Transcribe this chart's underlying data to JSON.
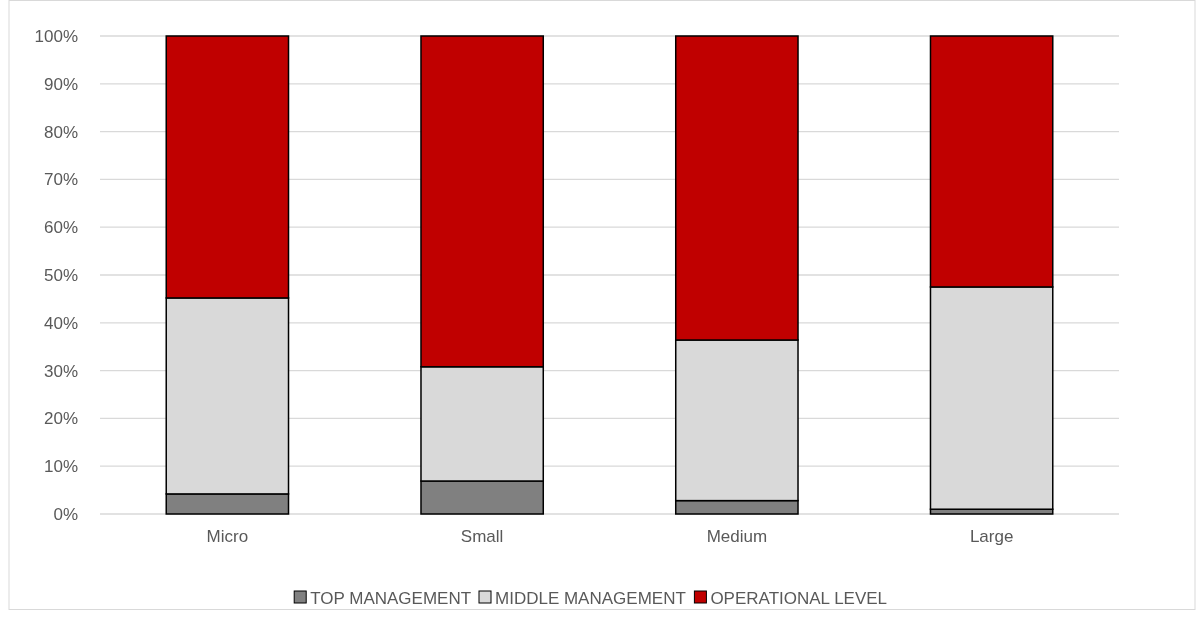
{
  "chart_data": {
    "type": "bar",
    "stacked": true,
    "categories": [
      "Micro",
      "Small",
      "Medium",
      "Large"
    ],
    "series": [
      {
        "name": "TOP MANAGEMENT",
        "color": "#808080",
        "values": [
          4.2,
          6.9,
          2.8,
          1.0
        ]
      },
      {
        "name": "MIDDLE MANAGEMENT",
        "color": "#d9d9d9",
        "values": [
          41.0,
          23.9,
          33.6,
          46.5
        ]
      },
      {
        "name": "OPERATIONAL LEVEL",
        "color": "#c00000",
        "values": [
          54.8,
          69.2,
          63.6,
          52.5
        ]
      }
    ],
    "ylim": [
      0,
      100
    ],
    "yticks": [
      {
        "value": 0,
        "label": "0%"
      },
      {
        "value": 10,
        "label": "10%"
      },
      {
        "value": 20,
        "label": "20%"
      },
      {
        "value": 30,
        "label": "30%"
      },
      {
        "value": 40,
        "label": "40%"
      },
      {
        "value": 50,
        "label": "50%"
      },
      {
        "value": 60,
        "label": "60%"
      },
      {
        "value": 70,
        "label": "70%"
      },
      {
        "value": 80,
        "label": "80%"
      },
      {
        "value": 90,
        "label": "90%"
      },
      {
        "value": 100,
        "label": "100%"
      }
    ],
    "grid": "y",
    "legend": "bottom"
  }
}
